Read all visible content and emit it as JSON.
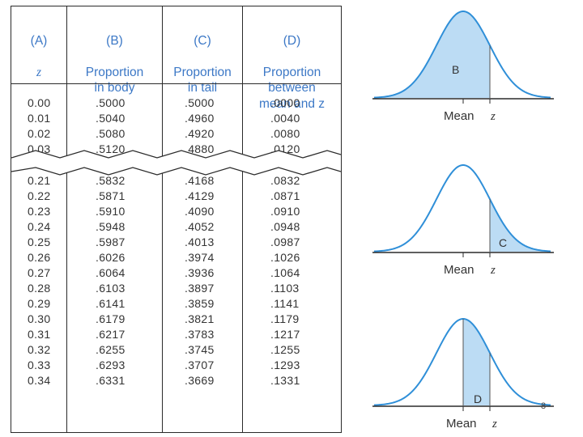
{
  "table": {
    "headers": [
      {
        "letter": "(A)",
        "title": "z"
      },
      {
        "letter": "(B)",
        "title": "Proportion\nin body"
      },
      {
        "letter": "(C)",
        "title": "Proportion\nin tail"
      },
      {
        "letter": "(D)",
        "title": "Proportion\nbetween\nmean and z"
      }
    ],
    "top_rows": {
      "z": [
        "0.00",
        "0.01",
        "0.02",
        "0.03"
      ],
      "body": [
        ".5000",
        ".5040",
        ".5080",
        ".5120"
      ],
      "tail": [
        ".5000",
        ".4960",
        ".4920",
        ".4880"
      ],
      "between": [
        ".0000",
        ".0040",
        ".0080",
        ".0120"
      ]
    },
    "bottom_rows": {
      "z": [
        "0.21",
        "0.22",
        "0.23",
        "0.24",
        "0.25",
        "0.26",
        "0.27",
        "0.28",
        "0.29",
        "0.30",
        "0.31",
        "0.32",
        "0.33",
        "0.34"
      ],
      "body": [
        ".5832",
        ".5871",
        ".5910",
        ".5948",
        ".5987",
        ".6026",
        ".6064",
        ".6103",
        ".6141",
        ".6179",
        ".6217",
        ".6255",
        ".6293",
        ".6331"
      ],
      "tail": [
        ".4168",
        ".4129",
        ".4090",
        ".4052",
        ".4013",
        ".3974",
        ".3936",
        ".3897",
        ".3859",
        ".3821",
        ".3783",
        ".3745",
        ".3707",
        ".3669"
      ],
      "between": [
        ".0832",
        ".0871",
        ".0910",
        ".0948",
        ".0987",
        ".1026",
        ".1064",
        ".1103",
        ".1141",
        ".1179",
        ".1217",
        ".1255",
        ".1293",
        ".1331"
      ]
    }
  },
  "figures": [
    {
      "region": "B",
      "mean_label": "Mean",
      "z_label": "z",
      "shaded": "body"
    },
    {
      "region": "C",
      "mean_label": "Mean",
      "z_label": "z",
      "shaded": "tail"
    },
    {
      "region": "D",
      "mean_label": "Mean",
      "z_label": "z",
      "shaded": "between"
    }
  ],
  "colors": {
    "header_text": "#3c78c6",
    "shade_fill": "#bcdcf4",
    "curve": "#2f8fd8",
    "line": "#2a2a2a"
  },
  "page_number": "8"
}
